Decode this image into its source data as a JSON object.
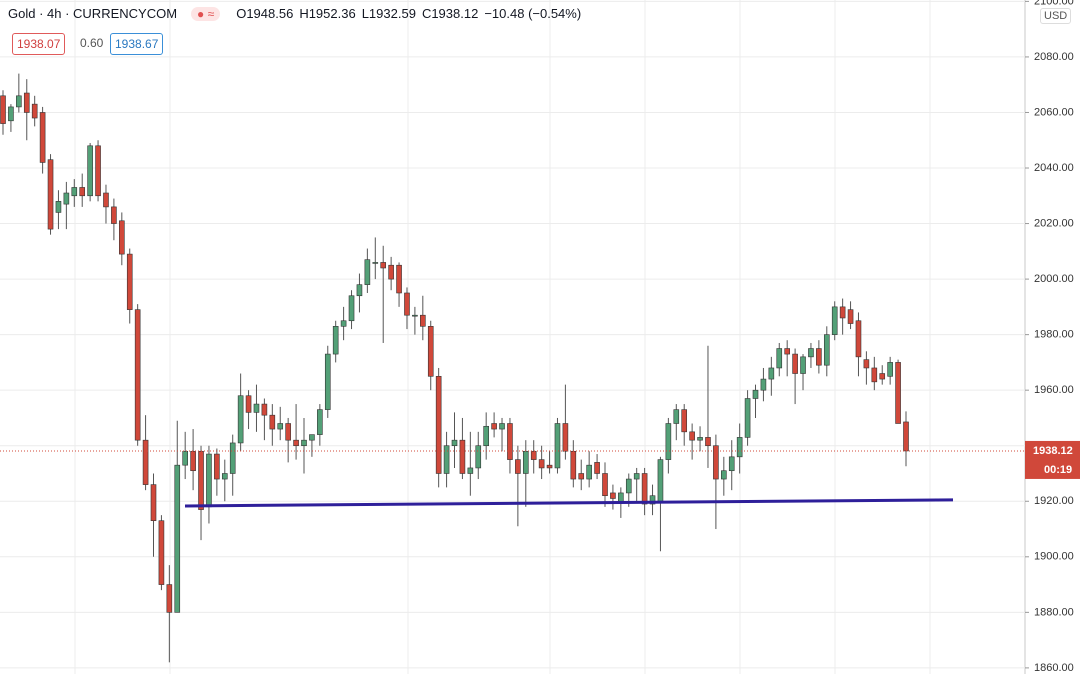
{
  "chart_data": {
    "type": "candlestick",
    "title": "Gold · 4h · CURRENCYCOM",
    "ohlc_labels": [
      "O1948.56",
      "H1952.36",
      "L1932.59",
      "C1938.12",
      "−10.48 (−0.54%)"
    ],
    "bid": "1938.07",
    "spread": "0.60",
    "ask": "1938.67",
    "currency": "USD",
    "last_price": 1938.12,
    "last_price_label": "1938.12",
    "countdown": "00:19",
    "up_color": "#53a077",
    "down_color": "#d0483a",
    "ylim": [
      1857.8,
      2100.5
    ],
    "yticks": [
      {
        "value": 1860,
        "label": "1860.00"
      },
      {
        "value": 1880,
        "label": "1880.00"
      },
      {
        "value": 1900,
        "label": "1900.00"
      },
      {
        "value": 1920,
        "label": "1920.00"
      },
      {
        "value": 1940,
        "label": "1940.00"
      },
      {
        "value": 1960,
        "label": "1960.00"
      },
      {
        "value": 1980,
        "label": "1980.00"
      },
      {
        "value": 2000,
        "label": "2000.00"
      },
      {
        "value": 2020,
        "label": "2020.00"
      },
      {
        "value": 2040,
        "label": "2040.00"
      },
      {
        "value": 2060,
        "label": "2060.00"
      },
      {
        "value": 2080,
        "label": "2080.00"
      },
      {
        "value": 2100,
        "label": "2100.00"
      }
    ],
    "grid": true,
    "support_line": {
      "values": [
        1918.3,
        1920.5
      ],
      "color": "#2e1f9a"
    },
    "open": [
      2066,
      2057,
      2062,
      2067,
      2063,
      2060,
      2043,
      2024,
      2027,
      2030,
      2033,
      2030,
      2048,
      2031,
      2026,
      2021,
      2009,
      1989,
      1942,
      1926,
      1913,
      1890,
      1880,
      1933,
      1938,
      1938,
      1918,
      1937,
      1928,
      1930,
      1941,
      1958,
      1952,
      1955,
      1951,
      1946,
      1948,
      1942,
      1940,
      1942,
      1944,
      1953,
      1973,
      1983,
      1985,
      1994,
      1998,
      2006,
      2006,
      2005,
      2005,
      1995,
      1987,
      1987,
      1983,
      1965,
      1930,
      1940,
      1942,
      1930,
      1932,
      1940,
      1948,
      1946,
      1948,
      1935,
      1930,
      1938,
      1935,
      1933,
      1932,
      1948,
      1938,
      1930,
      1928,
      1934,
      1930,
      1923,
      1920,
      1923,
      1928,
      1930,
      1919,
      1920,
      1935,
      1948,
      1953,
      1945,
      1942,
      1943,
      1940,
      1928,
      1931,
      1936,
      1943,
      1957,
      1960,
      1964,
      1968,
      1975,
      1973,
      1966,
      1972,
      1975,
      1969,
      1980,
      1990,
      1989,
      1985,
      1971,
      1968,
      1966,
      1965,
      1970,
      1948.56
    ],
    "high": [
      2068,
      2063,
      2074,
      2072,
      2066,
      2062,
      2045,
      2032,
      2035,
      2036,
      2038,
      2049,
      2050,
      2034,
      2029,
      2024,
      2011,
      1991,
      1951,
      1930,
      1915,
      1897,
      1949,
      1945,
      1946,
      1940,
      1940,
      1939,
      1935,
      1944,
      1966,
      1960,
      1962,
      1957,
      1955,
      1954,
      1950,
      1955,
      1950,
      1944,
      1955,
      1976,
      1985,
      1990,
      1996,
      2002,
      2011,
      2015,
      2012,
      2008,
      2006,
      1997,
      1990,
      1994,
      1985,
      1968,
      1945,
      1952,
      1950,
      1945,
      1945,
      1952,
      1952,
      1950,
      1950,
      1940,
      1942,
      1942,
      1940,
      1938,
      1950,
      1962,
      1942,
      1935,
      1938,
      1937,
      1934,
      1926,
      1925,
      1930,
      1932,
      1932,
      1926,
      1936,
      1950,
      1955,
      1955,
      1948,
      1947,
      1976,
      1944,
      1936,
      1942,
      1948,
      1960,
      1962,
      1968,
      1972,
      1977,
      1978,
      1975,
      1973,
      1977,
      1978,
      1983,
      1992,
      1993,
      1992,
      1988,
      1974,
      1972,
      1969,
      1972,
      1971,
      1952.36
    ],
    "low": [
      2052,
      2053,
      2060,
      2050,
      2055,
      2038,
      2016,
      2018,
      2018,
      2026,
      2026,
      2028,
      2028,
      2020,
      2014,
      2005,
      1984,
      1940,
      1924,
      1900,
      1888,
      1862,
      1880,
      1928,
      1924,
      1906,
      1912,
      1922,
      1920,
      1922,
      1938,
      1946,
      1945,
      1942,
      1940,
      1942,
      1934,
      1935,
      1930,
      1936,
      1940,
      1950,
      1970,
      1978,
      1982,
      1988,
      1995,
      2000,
      1977,
      1996,
      1990,
      1982,
      1980,
      1978,
      1960,
      1925,
      1925,
      1932,
      1928,
      1922,
      1928,
      1935,
      1943,
      1938,
      1930,
      1911,
      1918,
      1930,
      1928,
      1930,
      1930,
      1935,
      1925,
      1924,
      1925,
      1928,
      1918,
      1917,
      1914,
      1918,
      1920,
      1915,
      1915,
      1902,
      1930,
      1942,
      1940,
      1935,
      1938,
      1932,
      1910,
      1922,
      1924,
      1930,
      1940,
      1950,
      1956,
      1958,
      1965,
      1965,
      1955,
      1960,
      1968,
      1966,
      1965,
      1978,
      1980,
      1982,
      1965,
      1962,
      1960,
      1962,
      1962,
      1948,
      1932.59
    ],
    "close": [
      2056,
      2062,
      2066,
      2060,
      2058,
      2042,
      2018,
      2028,
      2031,
      2033,
      2030,
      2048,
      2030,
      2026,
      2020,
      2009,
      1989,
      1942,
      1926,
      1913,
      1890,
      1880,
      1933,
      1938,
      1931,
      1917,
      1937,
      1928,
      1930,
      1941,
      1958,
      1952,
      1955,
      1951,
      1946,
      1948,
      1942,
      1940,
      1942,
      1944,
      1953,
      1973,
      1983,
      1985,
      1994,
      1998,
      2007,
      2006,
      2004,
      2000,
      1995,
      1987,
      1987,
      1983,
      1965,
      1930,
      1940,
      1942,
      1930,
      1932,
      1940,
      1947,
      1946,
      1948,
      1935,
      1930,
      1938,
      1935,
      1932,
      1932,
      1948,
      1938,
      1928,
      1928,
      1933,
      1930,
      1922,
      1921,
      1923,
      1928,
      1930,
      1919,
      1922,
      1935,
      1948,
      1953,
      1945,
      1942,
      1943,
      1940,
      1928,
      1931,
      1936,
      1943,
      1957,
      1960,
      1964,
      1968,
      1975,
      1973,
      1966,
      1972,
      1975,
      1969,
      1980,
      1990,
      1986,
      1984,
      1972,
      1968,
      1963,
      1964,
      1970,
      1948,
      1938.12
    ]
  }
}
